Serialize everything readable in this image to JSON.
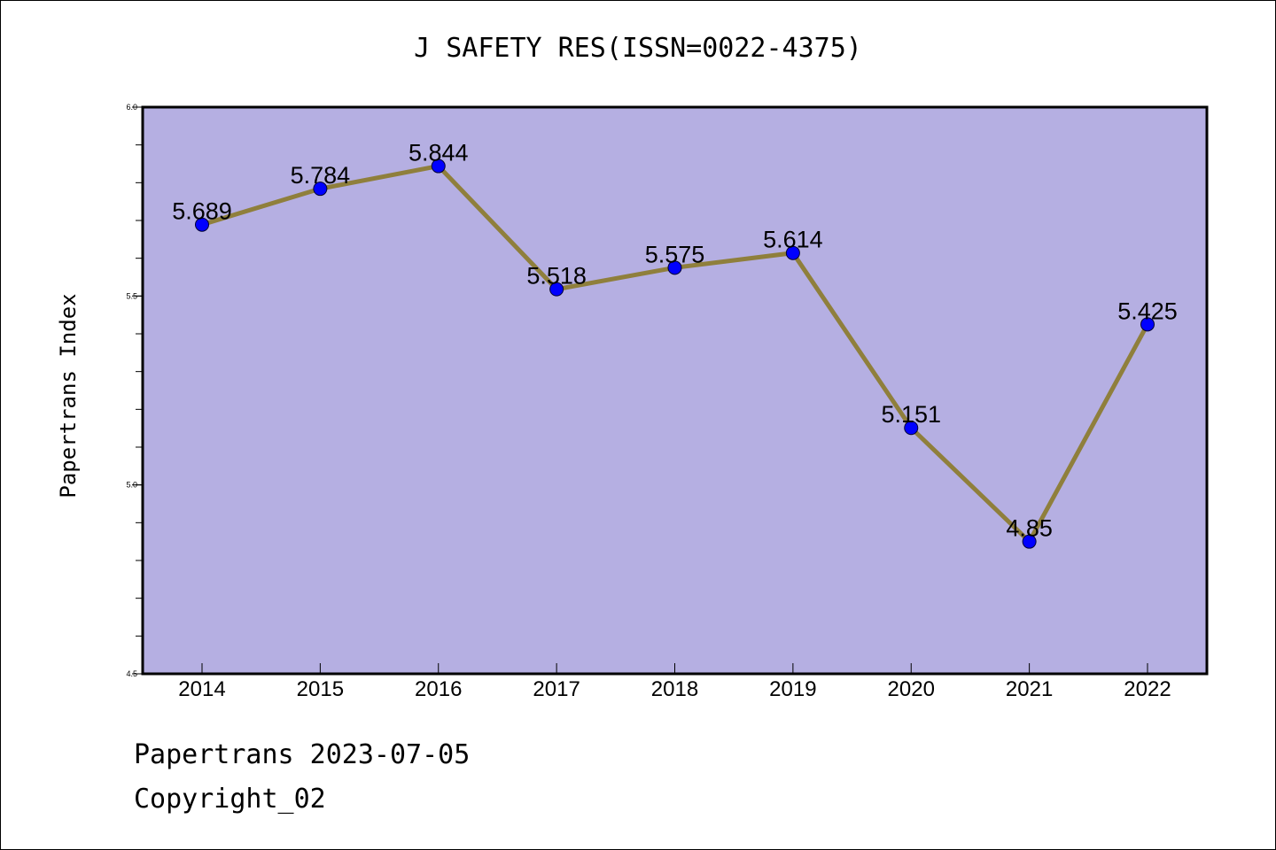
{
  "chart_data": {
    "type": "line",
    "title": "J SAFETY RES(ISSN=0022-4375)",
    "ylabel": "Papertrans Index",
    "xlabel": "",
    "categories": [
      "2014",
      "2015",
      "2016",
      "2017",
      "2018",
      "2019",
      "2020",
      "2021",
      "2022"
    ],
    "series": [
      {
        "values": [
          5.689,
          5.784,
          5.844,
          5.518,
          5.575,
          5.614,
          5.151,
          4.85,
          5.425
        ]
      }
    ],
    "data_labels": [
      "5.689",
      "5.784",
      "5.844",
      "5.518",
      "5.575",
      "5.614",
      "5.151",
      "4.85",
      "5.425"
    ],
    "ylim": [
      4.5,
      6.0
    ],
    "yticks": [
      "4.5",
      "5.0",
      "5.5",
      "6.0"
    ],
    "grid": false,
    "colors": {
      "plot_background": "#b5afe2",
      "line": "#8f7f3c",
      "marker": "#0000ff"
    }
  },
  "footer": {
    "date_line": "Papertrans 2023-07-05",
    "copyright": "Copyright_02"
  }
}
